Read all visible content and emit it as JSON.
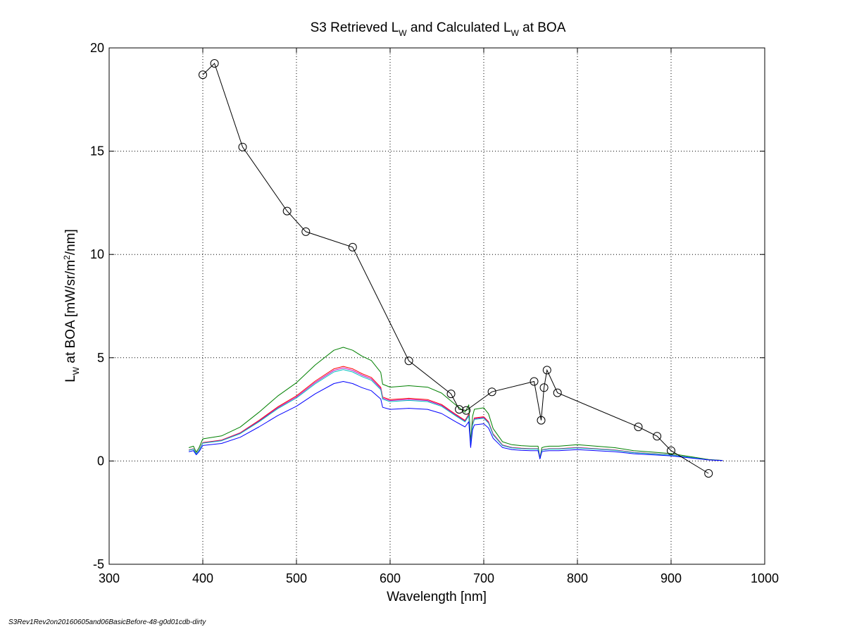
{
  "chart_data": {
    "type": "line",
    "title": {
      "main": "S3 Retrieved L",
      "sub1": "W",
      "middle": " and Calculated L",
      "sub2": "W",
      "end": " at BOA"
    },
    "xlabel": "Wavelength [nm]",
    "ylabel": {
      "main": "L",
      "sub": "W",
      "middle": " at BOA [mW/sr/m",
      "sup": "2",
      "end": "/nm]"
    },
    "xlim": [
      300,
      1000
    ],
    "ylim": [
      -5,
      20
    ],
    "xticks": [
      300,
      400,
      500,
      600,
      700,
      800,
      900,
      1000
    ],
    "yticks": [
      -5,
      0,
      5,
      10,
      15,
      20
    ],
    "grid": true,
    "footer": "S3Rev1Rev2on20160605and06BasicBefore-48-g0d01cdb-dirty",
    "colors": {
      "retrieved": "#000000",
      "green": "#008000",
      "red": "#ff0000",
      "magenta": "#bf00bf",
      "cyan": "#00bfbf",
      "blue": "#0000ff"
    },
    "retrieved_series": {
      "marker": "circle",
      "x": [
        400,
        412.5,
        442.5,
        490,
        510,
        560,
        620,
        665,
        673.75,
        681.25,
        708.75,
        753.75,
        761.25,
        764.375,
        767.5,
        778.75,
        865,
        885,
        900,
        940
      ],
      "y": [
        18.7,
        19.25,
        15.2,
        12.1,
        11.1,
        10.35,
        4.85,
        3.25,
        2.5,
        2.45,
        3.35,
        3.85,
        1.97,
        3.55,
        4.4,
        3.3,
        1.65,
        1.2,
        0.5,
        -0.6
      ]
    },
    "calculated_series": {
      "x": [
        385,
        390,
        393,
        396,
        400,
        420,
        440,
        460,
        480,
        500,
        520,
        540,
        550,
        560,
        570,
        580,
        590,
        592,
        600,
        620,
        640,
        655,
        670,
        680,
        684,
        686,
        688,
        690,
        700,
        705,
        710,
        720,
        730,
        740,
        750,
        758,
        760,
        762,
        765,
        770,
        780,
        800,
        820,
        840,
        860,
        880,
        900,
        920,
        940,
        955
      ],
      "base": [
        0.45,
        0.5,
        0.3,
        0.45,
        0.75,
        0.85,
        1.15,
        1.65,
        2.2,
        2.65,
        3.25,
        3.75,
        3.85,
        3.75,
        3.55,
        3.4,
        3.0,
        2.6,
        2.5,
        2.55,
        2.5,
        2.3,
        1.9,
        1.65,
        1.9,
        0.65,
        1.5,
        1.75,
        1.8,
        1.6,
        1.1,
        0.65,
        0.55,
        0.52,
        0.5,
        0.5,
        0.1,
        0.45,
        0.48,
        0.5,
        0.5,
        0.55,
        0.5,
        0.45,
        0.35,
        0.3,
        0.25,
        0.15,
        0.05,
        0.02
      ]
    },
    "series": [
      {
        "color": "#008000",
        "scale": 1.43
      },
      {
        "color": "#ff0000",
        "scale": 1.19
      },
      {
        "color": "#bf00bf",
        "scale": 1.17
      },
      {
        "color": "#00bfbf",
        "scale": 1.15
      },
      {
        "color": "#0000ff",
        "scale": 1.0
      }
    ]
  }
}
